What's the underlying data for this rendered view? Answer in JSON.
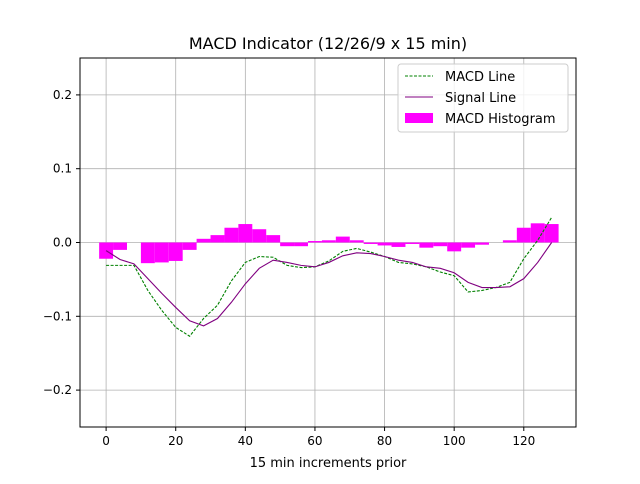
{
  "chart_data": {
    "type": "line",
    "title": "MACD Indicator (12/26/9 x 15 min)",
    "xlabel": "15 min increments prior",
    "ylabel": "",
    "xlim": [
      -7.5,
      135
    ],
    "ylim": [
      -0.25,
      0.25
    ],
    "xticks": [
      0,
      20,
      40,
      60,
      80,
      100,
      120
    ],
    "xtick_labels": [
      "0",
      "20",
      "40",
      "60",
      "80",
      "100",
      "120"
    ],
    "yticks": [
      0.2,
      0.1,
      0.0,
      -0.1,
      -0.2
    ],
    "ytick_labels": [
      "0.2",
      "0.1",
      "0.0",
      "−0.1",
      "−0.2"
    ],
    "grid": true,
    "legend_position": "top-right",
    "x": [
      0,
      4,
      8,
      12,
      16,
      20,
      24,
      28,
      32,
      36,
      40,
      44,
      48,
      52,
      56,
      60,
      64,
      68,
      72,
      76,
      80,
      84,
      88,
      92,
      96,
      100,
      104,
      108,
      112,
      116,
      120,
      124,
      128
    ],
    "series": [
      {
        "name": "MACD Line",
        "type": "line",
        "style": "dashed",
        "color": "#008000",
        "values": [
          -0.031,
          -0.031,
          -0.031,
          -0.065,
          -0.092,
          -0.115,
          -0.127,
          -0.103,
          -0.085,
          -0.052,
          -0.027,
          -0.019,
          -0.02,
          -0.031,
          -0.034,
          -0.033,
          -0.025,
          -0.012,
          -0.008,
          -0.013,
          -0.019,
          -0.027,
          -0.029,
          -0.033,
          -0.04,
          -0.045,
          -0.067,
          -0.065,
          -0.061,
          -0.054,
          -0.022,
          0.003,
          0.034
        ]
      },
      {
        "name": "Signal Line",
        "type": "line",
        "style": "solid",
        "color": "#800080",
        "values": [
          -0.011,
          -0.023,
          -0.029,
          -0.049,
          -0.069,
          -0.088,
          -0.106,
          -0.113,
          -0.103,
          -0.081,
          -0.056,
          -0.035,
          -0.024,
          -0.027,
          -0.031,
          -0.033,
          -0.027,
          -0.018,
          -0.014,
          -0.015,
          -0.019,
          -0.024,
          -0.027,
          -0.033,
          -0.035,
          -0.041,
          -0.054,
          -0.061,
          -0.061,
          -0.06,
          -0.049,
          -0.027,
          0.0
        ]
      },
      {
        "name": "MACD Histogram",
        "type": "bar",
        "color": "#ff00ff",
        "values": [
          -0.022,
          -0.01,
          0.0,
          -0.028,
          -0.027,
          -0.025,
          -0.01,
          0.005,
          0.01,
          0.02,
          0.025,
          0.018,
          0.01,
          -0.005,
          -0.005,
          0.002,
          0.003,
          0.008,
          0.003,
          -0.002,
          -0.004,
          -0.006,
          -0.002,
          -0.007,
          -0.005,
          -0.012,
          -0.007,
          -0.003,
          0.0,
          0.003,
          0.02,
          0.026,
          0.025
        ]
      }
    ]
  }
}
